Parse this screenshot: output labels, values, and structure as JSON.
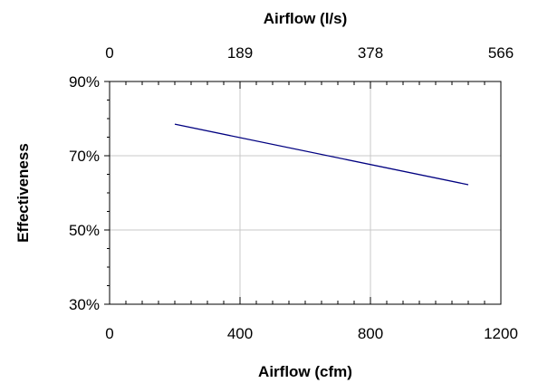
{
  "chart_data": {
    "type": "line",
    "xlabel": "Airflow (cfm)",
    "x2label": "Airflow (l/s)",
    "ylabel": "Effectiveness",
    "xlim": [
      0,
      1200
    ],
    "ylim": [
      30,
      90
    ],
    "x_ticks": [
      "0",
      "400",
      "800",
      "1200"
    ],
    "x2_ticks": [
      "0",
      "189",
      "378",
      "566"
    ],
    "y_ticks": [
      "30%",
      "50%",
      "70%",
      "90%"
    ],
    "grid": true,
    "series": [
      {
        "x": [
          200,
          1100
        ],
        "y": [
          78.5,
          62.2
        ],
        "color": "#000080"
      }
    ]
  }
}
